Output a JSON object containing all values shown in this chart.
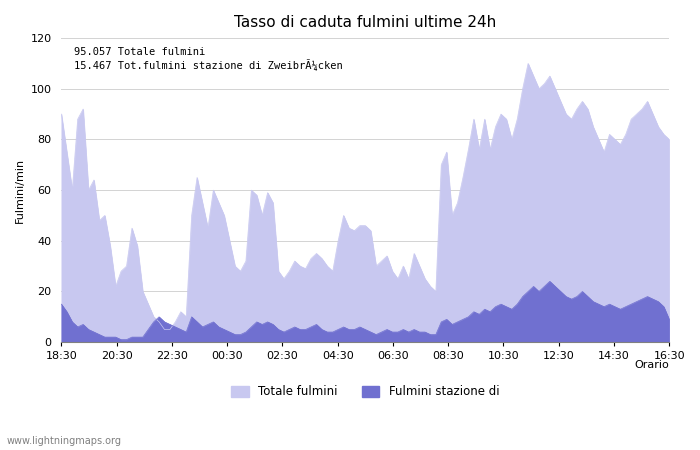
{
  "title": "Tasso di caduta fulmini ultime 24h",
  "xlabel": "Orario",
  "ylabel": "Fulmini/min",
  "ylim": [
    0,
    120
  ],
  "annotation_line1": "95.057 Totale fulmini",
  "annotation_line2": "15.467 Tot.fulmini stazione di ZweibrÃ¼cken",
  "legend_label1": "Totale fulmini",
  "legend_label2": "Fulmini stazione di",
  "watermark": "www.lightningmaps.org",
  "color_total": "#c8c8f0",
  "color_station": "#7070d0",
  "xtick_labels": [
    "18:30",
    "20:30",
    "22:30",
    "00:30",
    "02:30",
    "04:30",
    "06:30",
    "08:30",
    "10:30",
    "12:30",
    "14:30",
    "16:30"
  ],
  "total_values": [
    90,
    75,
    60,
    88,
    92,
    60,
    64,
    48,
    50,
    38,
    22,
    28,
    30,
    45,
    38,
    20,
    15,
    10,
    8,
    5,
    5,
    8,
    12,
    10,
    50,
    65,
    55,
    45,
    60,
    55,
    50,
    40,
    30,
    28,
    32,
    60,
    58,
    50,
    59,
    55,
    28,
    25,
    28,
    32,
    30,
    29,
    33,
    35,
    33,
    30,
    28,
    40,
    50,
    45,
    44,
    46,
    46,
    44,
    30,
    32,
    34,
    28,
    25,
    30,
    25,
    35,
    30,
    25,
    22,
    20,
    70,
    75,
    50,
    55,
    65,
    76,
    88,
    76,
    88,
    76,
    85,
    90,
    88,
    80,
    88,
    100,
    110,
    105,
    100,
    102,
    105,
    100,
    95,
    90,
    88,
    92,
    95,
    92,
    85,
    80,
    75,
    82,
    80,
    78,
    82,
    88,
    90,
    92,
    95,
    90,
    85,
    82,
    80
  ],
  "station_values": [
    15,
    12,
    8,
    6,
    7,
    5,
    4,
    3,
    2,
    2,
    2,
    1,
    1,
    2,
    2,
    2,
    5,
    8,
    10,
    8,
    7,
    6,
    5,
    4,
    10,
    8,
    6,
    7,
    8,
    6,
    5,
    4,
    3,
    3,
    4,
    6,
    8,
    7,
    8,
    7,
    5,
    4,
    5,
    6,
    5,
    5,
    6,
    7,
    5,
    4,
    4,
    5,
    6,
    5,
    5,
    6,
    5,
    4,
    3,
    4,
    5,
    4,
    4,
    5,
    4,
    5,
    4,
    4,
    3,
    3,
    8,
    9,
    7,
    8,
    9,
    10,
    12,
    11,
    13,
    12,
    14,
    15,
    14,
    13,
    15,
    18,
    20,
    22,
    20,
    22,
    24,
    22,
    20,
    18,
    17,
    18,
    20,
    18,
    16,
    15,
    14,
    15,
    14,
    13,
    14,
    15,
    16,
    17,
    18,
    17,
    16,
    14,
    9
  ]
}
